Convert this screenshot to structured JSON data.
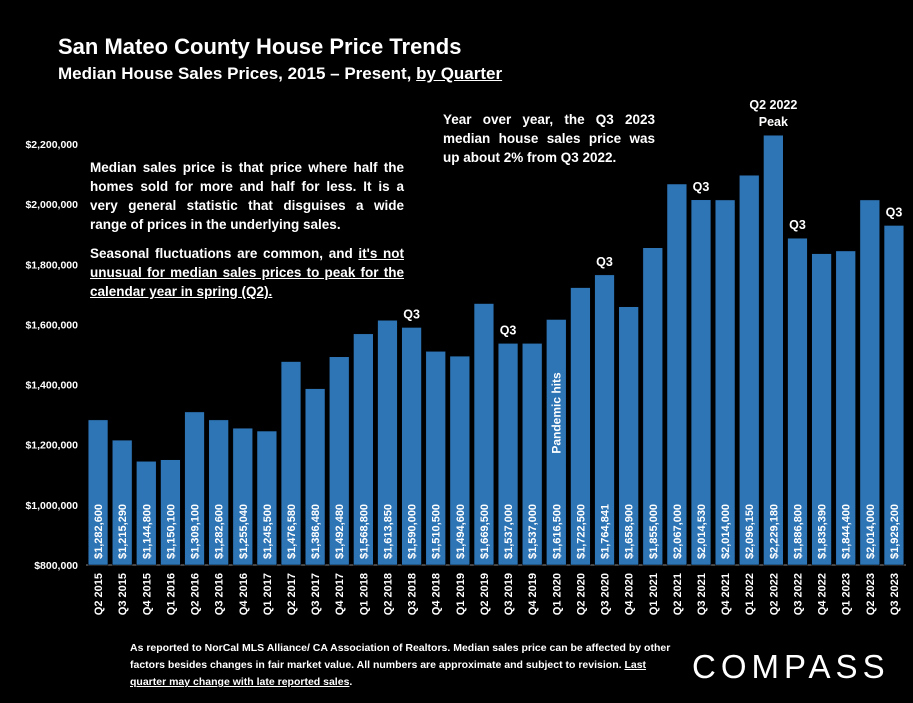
{
  "header": {
    "title": "San Mateo County House Price Trends",
    "subtitle_main": "Median House Sales Prices, 2015 – Present, ",
    "subtitle_link": "by Quarter"
  },
  "notes": {
    "left_p1": "Median sales price is that price where half the homes sold for more and half for less. It is a very general statistic that disguises a wide range of prices in the underlying sales.",
    "left_p2_a": "Seasonal fluctuations are common, and ",
    "left_p2_b": "it's not unusual for median sales prices to peak for the calendar year in spring (Q2).",
    "top": "Year over year, the Q3 2023 median house sales price was up about 2% from Q3 2022."
  },
  "footer": {
    "text_a": "As reported to NorCal MLS Alliance/ CA Association of Realtors. Median sales price can be affected by other factors besides changes in fair market value. All numbers are approximate and subject to revision. ",
    "text_b": "Last quarter may change with late reported sales",
    "text_c": "."
  },
  "logo": "COMPASS",
  "chart_data": {
    "type": "bar",
    "title": "San Mateo County House Price Trends",
    "subtitle": "Median House Sales Prices, 2015 – Present, by Quarter",
    "categories": [
      "Q2 2015",
      "Q3 2015",
      "Q4 2015",
      "Q1 2016",
      "Q2 2016",
      "Q3 2016",
      "Q4 2016",
      "Q1 2017",
      "Q2 2017",
      "Q3 2017",
      "Q4 2017",
      "Q1 2018",
      "Q2 2018",
      "Q3 2018",
      "Q4 2018",
      "Q1 2019",
      "Q2 2019",
      "Q3 2019",
      "Q4 2019",
      "Q1 2020",
      "Q2 2020",
      "Q3 2020",
      "Q4 2020",
      "Q1 2021",
      "Q2 2021",
      "Q3 2021",
      "Q4 2021",
      "Q1 2022",
      "Q2 2022",
      "Q3 2022",
      "Q4 2022",
      "Q1 2023",
      "Q2 2023",
      "Q3 2023"
    ],
    "values": [
      1282600,
      1215290,
      1144800,
      1150100,
      1309100,
      1282600,
      1255040,
      1245500,
      1476580,
      1386480,
      1492480,
      1568800,
      1613850,
      1590000,
      1510500,
      1494600,
      1669500,
      1537000,
      1537000,
      1616500,
      1722500,
      1764841,
      1658900,
      1855000,
      2067000,
      2014530,
      2014000,
      2096150,
      2229180,
      1886800,
      1835390,
      1844400,
      2014000,
      1929200
    ],
    "value_labels": [
      "$1,282,600",
      "$1,215,290",
      "$1,144,800",
      "$1,150,100",
      "$1,309,100",
      "$1,282,600",
      "$1,255,040",
      "$1,245,500",
      "$1,476,580",
      "$1,386,480",
      "$1,492,480",
      "$1,568,800",
      "$1,613,850",
      "$1,590,000",
      "$1,510,500",
      "$1,494,600",
      "$1,669,500",
      "$1,537,000",
      "$1,537,000",
      "$1,616,500",
      "$1,722,500",
      "$1,764,841",
      "$1,658,900",
      "$1,855,000",
      "$2,067,000",
      "$2,014,530",
      "$2,014,000",
      "$2,096,150",
      "$2,229,180",
      "$1,886,800",
      "$1,835,390",
      "$1,844,400",
      "$2,014,000",
      "$1,929,200"
    ],
    "y_ticks": [
      800000,
      1000000,
      1200000,
      1400000,
      1600000,
      1800000,
      2000000,
      2200000
    ],
    "y_tick_labels": [
      "$800,000",
      "$1,000,000",
      "$1,200,000",
      "$1,400,000",
      "$1,600,000",
      "$1,800,000",
      "$2,000,000",
      "$2,200,000"
    ],
    "ylim": [
      800000,
      2260000
    ],
    "bar_color": "#2e75b6",
    "annotations": [
      {
        "index": 13,
        "text": "Q3"
      },
      {
        "index": 17,
        "text": "Q3"
      },
      {
        "index": 21,
        "text": "Q3"
      },
      {
        "index": 25,
        "text": "Q3"
      },
      {
        "index": 29,
        "text": "Q3"
      },
      {
        "index": 33,
        "text": "Q3"
      },
      {
        "index": 28,
        "text": "Q2 2022",
        "text2": "Peak"
      }
    ],
    "event_label": {
      "index": 19,
      "text": "Pandemic hits"
    },
    "grid": false,
    "legend": "none"
  }
}
